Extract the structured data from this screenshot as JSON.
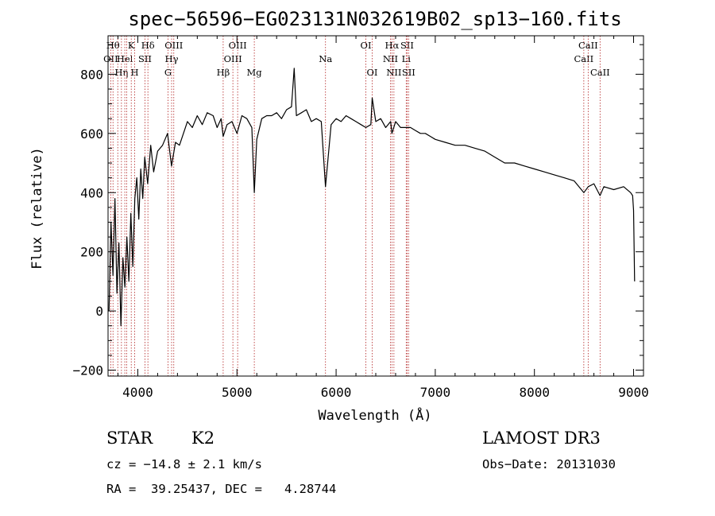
{
  "chart_data": {
    "type": "line",
    "title": "spec−56596−EG023131N032619B02_sp13−160.fits",
    "xlabel": "Wavelength (Å)",
    "ylabel": "Flux (relative)",
    "xlim": [
      3700,
      9100
    ],
    "ylim": [
      -220,
      930
    ],
    "x_ticks": [
      4000,
      5000,
      6000,
      7000,
      8000,
      9000
    ],
    "x_tick_labels": [
      "4000",
      "5000",
      "6000",
      "7000",
      "8000",
      "9000"
    ],
    "y_ticks": [
      -200,
      0,
      200,
      400,
      600,
      800
    ],
    "y_tick_labels": [
      "−200",
      "0",
      "200",
      "400",
      "600",
      "800"
    ],
    "grid": false,
    "series": [
      {
        "x": [
          3710,
          3730,
          3750,
          3770,
          3790,
          3810,
          3830,
          3850,
          3870,
          3890,
          3910,
          3930,
          3950,
          3970,
          3990,
          4010,
          4030,
          4050,
          4070,
          4100,
          4130,
          4160,
          4200,
          4250,
          4300,
          4340,
          4380,
          4420,
          4460,
          4500,
          4550,
          4600,
          4650,
          4700,
          4760,
          4800,
          4840,
          4861,
          4900,
          4950,
          5000,
          5050,
          5100,
          5150,
          5175,
          5200,
          5250,
          5300,
          5350,
          5400,
          5450,
          5500,
          5550,
          5577,
          5600,
          5650,
          5700,
          5750,
          5800,
          5850,
          5893,
          5950,
          6000,
          6050,
          6100,
          6150,
          6200,
          6250,
          6300,
          6350,
          6364,
          6400,
          6450,
          6500,
          6550,
          6563,
          6600,
          6650,
          6700,
          6750,
          6800,
          6850,
          6900,
          6950,
          7000,
          7100,
          7200,
          7300,
          7400,
          7500,
          7600,
          7700,
          7800,
          7900,
          8000,
          8100,
          8200,
          8300,
          8400,
          8498,
          8542,
          8600,
          8662,
          8700,
          8800,
          8900,
          8970,
          8990,
          9000,
          9010
        ],
        "y": [
          0,
          300,
          120,
          380,
          60,
          230,
          -50,
          180,
          80,
          250,
          100,
          330,
          150,
          380,
          450,
          310,
          480,
          380,
          520,
          430,
          560,
          470,
          540,
          560,
          600,
          490,
          570,
          560,
          600,
          640,
          620,
          660,
          630,
          670,
          660,
          620,
          650,
          590,
          630,
          640,
          600,
          660,
          650,
          620,
          400,
          580,
          650,
          660,
          660,
          670,
          650,
          680,
          690,
          820,
          660,
          670,
          680,
          640,
          650,
          640,
          420,
          630,
          650,
          640,
          660,
          650,
          640,
          630,
          620,
          630,
          720,
          640,
          650,
          620,
          640,
          600,
          640,
          620,
          620,
          620,
          610,
          600,
          600,
          590,
          580,
          570,
          560,
          560,
          550,
          540,
          520,
          500,
          500,
          490,
          480,
          470,
          460,
          450,
          440,
          400,
          420,
          430,
          390,
          420,
          410,
          420,
          400,
          390,
          340,
          100
        ]
      }
    ],
    "line_markers": [
      {
        "wl": 3727,
        "label": "OII",
        "row": 2
      },
      {
        "wl": 3750,
        "label": "Hθ",
        "row": 1
      },
      {
        "wl": 3798,
        "label": "",
        "row": 0
      },
      {
        "wl": 3835,
        "label": "Hη",
        "row": 3
      },
      {
        "wl": 3869,
        "label": "Hel",
        "row": 2
      },
      {
        "wl": 3889,
        "label": "",
        "row": 0
      },
      {
        "wl": 3934,
        "label": "K",
        "row": 1
      },
      {
        "wl": 3969,
        "label": "H",
        "row": 3
      },
      {
        "wl": 4072,
        "label": "SII",
        "row": 2
      },
      {
        "wl": 4102,
        "label": "Hδ",
        "row": 1
      },
      {
        "wl": 4305,
        "label": "G",
        "row": 3
      },
      {
        "wl": 4341,
        "label": "Hγ",
        "row": 2
      },
      {
        "wl": 4363,
        "label": "OIII",
        "row": 1
      },
      {
        "wl": 4861,
        "label": "Hβ",
        "row": 3
      },
      {
        "wl": 4959,
        "label": "OIII",
        "row": 2
      },
      {
        "wl": 5007,
        "label": "OIII",
        "row": 1
      },
      {
        "wl": 5175,
        "label": "Mg",
        "row": 3
      },
      {
        "wl": 5893,
        "label": "Na",
        "row": 2
      },
      {
        "wl": 6300,
        "label": "OI",
        "row": 1
      },
      {
        "wl": 6364,
        "label": "OI",
        "row": 3
      },
      {
        "wl": 6548,
        "label": "NII",
        "row": 2
      },
      {
        "wl": 6563,
        "label": "Hα",
        "row": 1
      },
      {
        "wl": 6583,
        "label": "NII",
        "row": 3
      },
      {
        "wl": 6707,
        "label": "Li",
        "row": 2
      },
      {
        "wl": 6716,
        "label": "SII",
        "row": 1
      },
      {
        "wl": 6731,
        "label": "SII",
        "row": 3
      },
      {
        "wl": 8498,
        "label": "CaII",
        "row": 2
      },
      {
        "wl": 8542,
        "label": "CaII",
        "row": 1
      },
      {
        "wl": 8662,
        "label": "CaII",
        "row": 3
      }
    ]
  },
  "info": {
    "class": "STAR",
    "subclass": "K2",
    "survey": "LAMOST DR3",
    "redshift": "cz = −14.8 ± 2.1 km/s",
    "obs_date": "Obs−Date: 20131030",
    "coords": "RA =  39.25437, DEC =   4.28744"
  },
  "colors": {
    "spectrum": "#000000",
    "line_marker": "#b22222",
    "axes": "#000000",
    "background": "#ffffff"
  }
}
